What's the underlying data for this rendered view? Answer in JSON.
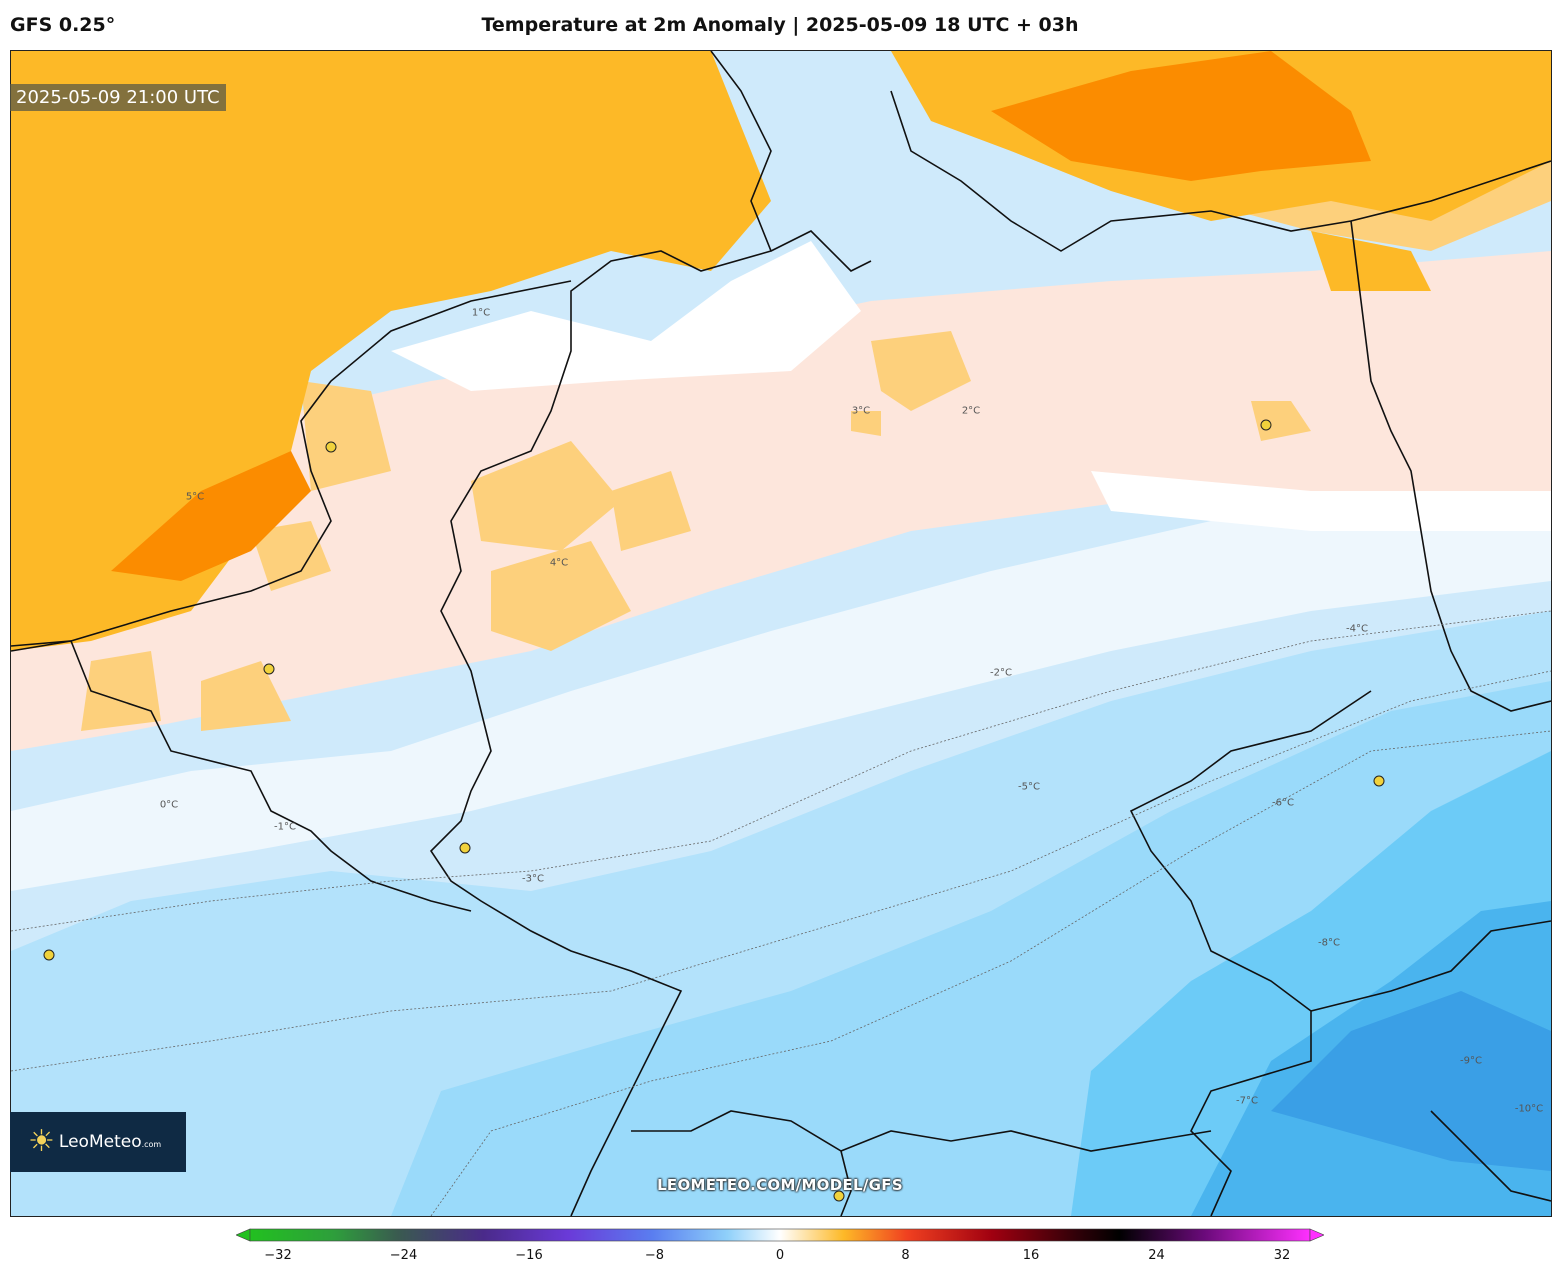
{
  "header": {
    "model": "GFS 0.25°",
    "title": "Temperature at 2m Anomaly | 2025-05-09 18 UTC + 03h"
  },
  "map": {
    "timestamp": "2025-05-09 21:00 UTC",
    "watermark": "LEOMETEO.COM/MODEL/GFS",
    "contour_labels": [
      "-10°C",
      "-9°C",
      "-8°C",
      "-7°C",
      "-6°C",
      "-5°C",
      "-4°C",
      "-3°C",
      "-2°C",
      "-1°C",
      "0°C",
      "1°C",
      "2°C",
      "3°C",
      "4°C",
      "5°C"
    ]
  },
  "logo": {
    "name": "LeoMeteo",
    "suffix": ".com"
  },
  "colorbar": {
    "ticks": [
      "−32",
      "−24",
      "−16",
      "−8",
      "0",
      "8",
      "16",
      "24",
      "32"
    ],
    "min": -32,
    "max": 32
  },
  "colors": {
    "warm_strong": "#fb8c00",
    "warm": "#fdb927",
    "warm_light": "#fdd07c",
    "neutral_warm": "#fde6dc",
    "neutral": "#ffffff",
    "cold_light": "#d4ecfb",
    "cold": "#9fdcfb",
    "cold_strong": "#5cc6f5",
    "cold_deep": "#3a9fe6"
  }
}
